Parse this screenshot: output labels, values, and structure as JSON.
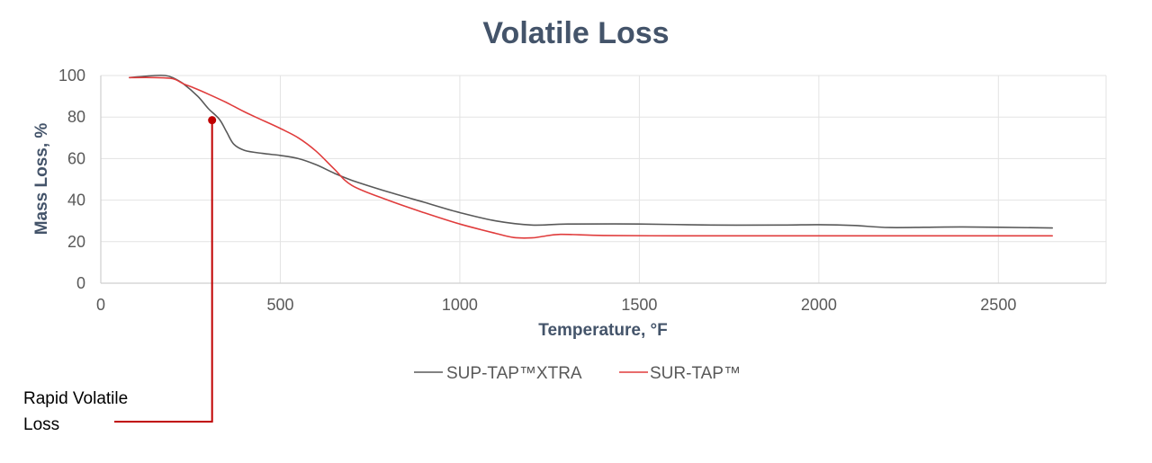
{
  "chart_data": {
    "type": "line",
    "title": "Volatile Loss",
    "xlabel": "Temperature, °F",
    "ylabel": "Mass Loss, %",
    "xlim": [
      0,
      2800
    ],
    "ylim": [
      0,
      100
    ],
    "xticks": [
      0,
      500,
      1000,
      1500,
      2000,
      2500
    ],
    "yticks": [
      0,
      20,
      40,
      60,
      80,
      100
    ],
    "grid": true,
    "legend_position": "bottom",
    "series": [
      {
        "name": "SUP-TAP™XTRA",
        "color": "#595959",
        "x": [
          80,
          150,
          180,
          200,
          230,
          270,
          300,
          330,
          350,
          370,
          400,
          450,
          500,
          550,
          600,
          650,
          700,
          800,
          900,
          1000,
          1100,
          1200,
          1300,
          1500,
          1700,
          1900,
          2000,
          2100,
          2200,
          2400,
          2650
        ],
        "y": [
          99,
          100,
          100,
          99,
          96,
          90,
          84,
          79,
          73,
          67,
          64,
          62.5,
          61.5,
          60,
          57,
          53,
          49.5,
          44,
          39,
          34,
          30,
          28,
          28.5,
          28.5,
          28,
          28,
          28.2,
          27.8,
          26.8,
          27.1,
          26.6
        ]
      },
      {
        "name": "SUR-TAP™",
        "color": "#e03c3c",
        "x": [
          80,
          150,
          200,
          230,
          260,
          300,
          350,
          400,
          450,
          500,
          550,
          600,
          650,
          700,
          800,
          900,
          1000,
          1100,
          1150,
          1200,
          1230,
          1280,
          1400,
          1600,
          1800,
          2000,
          2200,
          2400,
          2650
        ],
        "y": [
          99,
          99,
          98.5,
          96,
          94,
          91,
          87,
          82.5,
          78.5,
          74.5,
          70,
          63.5,
          55,
          47,
          40,
          34,
          28.5,
          24,
          22,
          21.8,
          22.5,
          23.5,
          23,
          22.8,
          22.8,
          22.8,
          22.8,
          22.8,
          22.8
        ]
      }
    ],
    "annotation": {
      "text_lines": [
        "Rapid Volatile",
        "Loss"
      ],
      "color": "#c00000",
      "marker_x": 310,
      "marker_y": 78.5
    }
  }
}
